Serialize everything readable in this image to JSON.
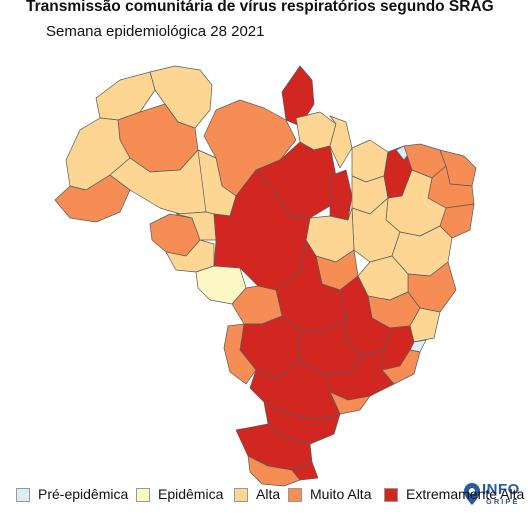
{
  "header": {
    "title": "Transmissão comunitária de vírus respiratórios segundo SRAG",
    "subtitle": "Semana epidemiológica 28 2021"
  },
  "logo": {
    "name": "INFO",
    "sub": "GRIPE",
    "icon": "map-pin-icon"
  },
  "legend": {
    "items": [
      {
        "key": "pre",
        "label": "Pré-epidêmica",
        "color": "#dbeef6"
      },
      {
        "key": "epi",
        "label": "Epidêmica",
        "color": "#fdf7c3"
      },
      {
        "key": "alta",
        "label": "Alta",
        "color": "#fdd693"
      },
      {
        "key": "muito",
        "label": "Muito Alta",
        "color": "#f68d55"
      },
      {
        "key": "extrema",
        "label": "Extremamente Alta",
        "color": "#d22620"
      }
    ]
  },
  "colors": {
    "pre": "#dbeef6",
    "epi": "#fdf7c3",
    "alta": "#fdd693",
    "muito": "#f68d55",
    "extrema": "#d22620",
    "border": "#555555"
  }
}
